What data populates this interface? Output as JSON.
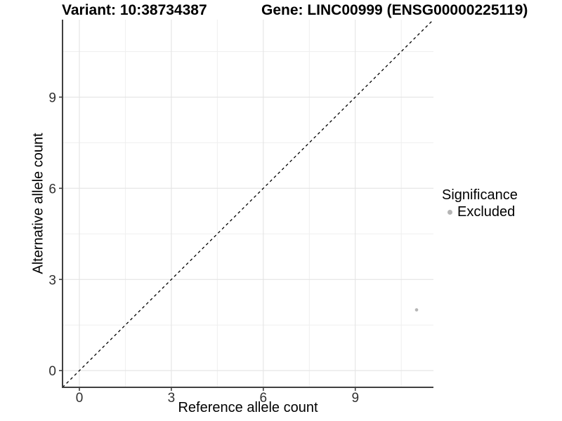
{
  "chart_data": {
    "type": "scatter",
    "title_left": "Variant: 10:38734387",
    "title_right": "Gene: LINC00999 (ENSG00000225119)",
    "xlabel": "Reference allele count",
    "ylabel": "Alternative allele count",
    "xlim": [
      -0.55,
      11.55
    ],
    "ylim": [
      -0.55,
      11.55
    ],
    "x_ticks": [
      0,
      3,
      6,
      9
    ],
    "y_ticks": [
      0,
      3,
      6,
      9
    ],
    "minor_ticks": [
      1.5,
      4.5,
      7.5,
      10.5
    ],
    "grid": "major and minor, light grey on white",
    "series": [
      {
        "name": "Excluded",
        "color": "#b5b5b5",
        "points": [
          {
            "x": 11,
            "y": 2
          }
        ]
      }
    ],
    "reference_line": {
      "equation": "y = x",
      "style": "dashed",
      "color": "#000000",
      "x1": -0.55,
      "y1": -0.55,
      "x2": 11.55,
      "y2": 11.55
    },
    "legend": {
      "title": "Significance",
      "position": "right",
      "items": [
        {
          "label": "Excluded",
          "marker": "circle",
          "color": "#b5b5b5"
        }
      ]
    },
    "colors": {
      "background": "#ffffff",
      "axis_line": "#404040",
      "tick_mark": "#404040",
      "tick_label": "#303030",
      "grid_major": "#e4e4e4",
      "grid_minor": "#efefef"
    }
  }
}
